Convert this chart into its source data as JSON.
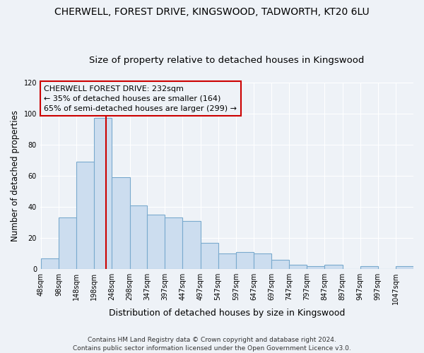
{
  "title": "CHERWELL, FOREST DRIVE, KINGSWOOD, TADWORTH, KT20 6LU",
  "subtitle": "Size of property relative to detached houses in Kingswood",
  "xlabel": "Distribution of detached houses by size in Kingswood",
  "ylabel": "Number of detached properties",
  "bar_color": "#ccddef",
  "bar_edge_color": "#7aaace",
  "bins": [
    48,
    98,
    148,
    198,
    248,
    298,
    347,
    397,
    447,
    497,
    547,
    597,
    647,
    697,
    747,
    797,
    847,
    897,
    947,
    997,
    1047
  ],
  "counts": [
    7,
    33,
    69,
    97,
    59,
    41,
    35,
    33,
    31,
    17,
    10,
    11,
    10,
    6,
    3,
    2,
    3,
    0,
    2,
    0,
    2
  ],
  "tick_labels": [
    "48sqm",
    "98sqm",
    "148sqm",
    "198sqm",
    "248sqm",
    "298sqm",
    "347sqm",
    "397sqm",
    "447sqm",
    "497sqm",
    "547sqm",
    "597sqm",
    "647sqm",
    "697sqm",
    "747sqm",
    "797sqm",
    "847sqm",
    "897sqm",
    "947sqm",
    "997sqm",
    "1047sqm"
  ],
  "ylim": [
    0,
    120
  ],
  "yticks": [
    0,
    20,
    40,
    60,
    80,
    100,
    120
  ],
  "vline_x": 232,
  "vline_color": "#cc0000",
  "annotation_line1": "CHERWELL FOREST DRIVE: 232sqm",
  "annotation_line2": "← 35% of detached houses are smaller (164)",
  "annotation_line3": "65% of semi-detached houses are larger (299) →",
  "annotation_box_color": "#cc0000",
  "footnote": "Contains HM Land Registry data © Crown copyright and database right 2024.\nContains public sector information licensed under the Open Government Licence v3.0.",
  "background_color": "#eef2f7",
  "grid_color": "#ffffff",
  "title_fontsize": 10,
  "subtitle_fontsize": 9.5,
  "xlabel_fontsize": 9,
  "ylabel_fontsize": 8.5,
  "tick_fontsize": 7,
  "annotation_fontsize": 8,
  "footnote_fontsize": 6.5
}
